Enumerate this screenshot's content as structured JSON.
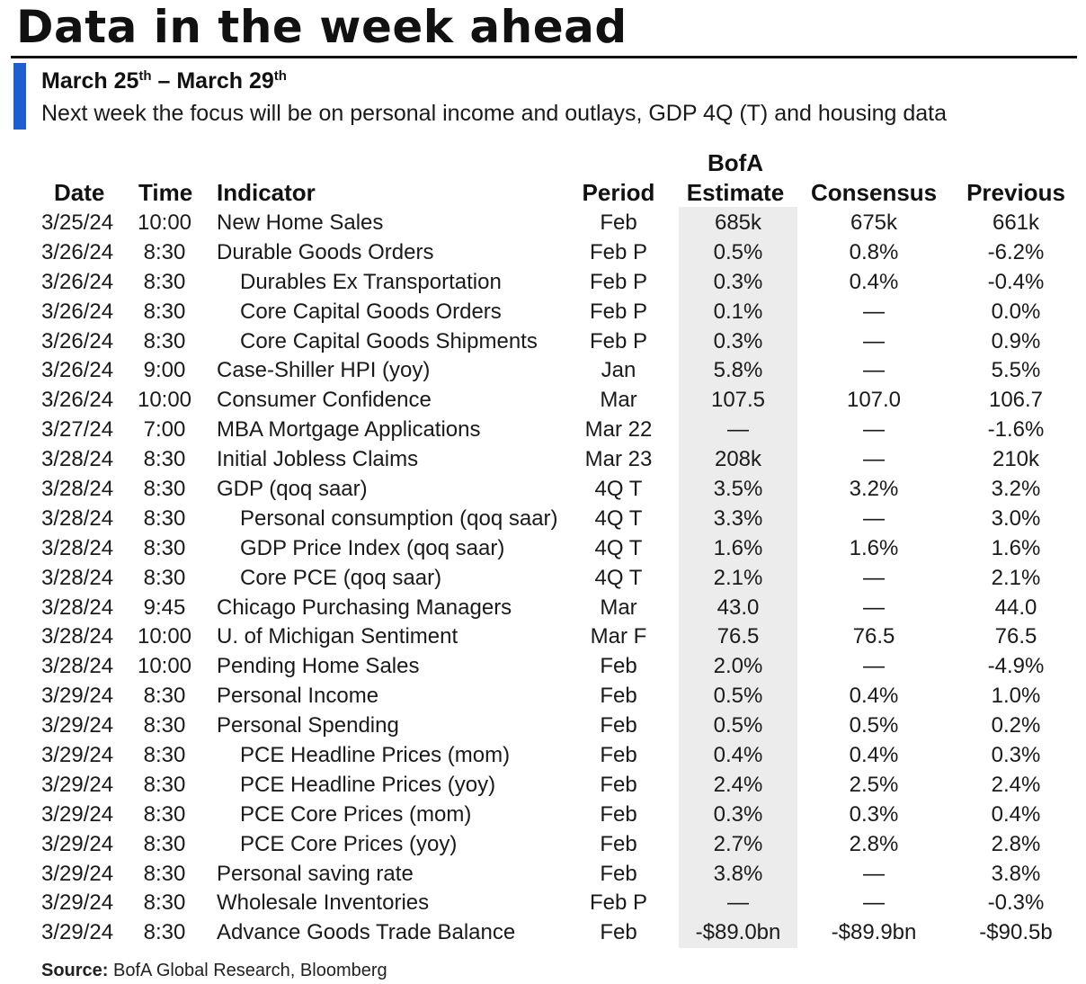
{
  "title": "Data in the week ahead",
  "date_range": {
    "start": "March 25",
    "start_sup": "th",
    "sep": " – ",
    "end": "March 29",
    "end_sup": "th"
  },
  "subtitle": "Next week the focus will be on personal income and outlays, GDP 4Q (T) and housing data",
  "headers": {
    "date": "Date",
    "time": "Time",
    "indicator": "Indicator",
    "period": "Period",
    "estimate_line1": "BofA",
    "estimate_line2": "Estimate",
    "consensus": "Consensus",
    "previous": "Previous"
  },
  "highlight_color": "#ececec",
  "accent_color": "#1d5fd1",
  "rows": [
    {
      "date": "3/25/24",
      "time": "10:00",
      "indicator": "New Home Sales",
      "sub": false,
      "period": "Feb",
      "estimate": "685k",
      "consensus": "675k",
      "previous": "661k"
    },
    {
      "date": "3/26/24",
      "time": "8:30",
      "indicator": "Durable Goods Orders",
      "sub": false,
      "period": "Feb P",
      "estimate": "0.5%",
      "consensus": "0.8%",
      "previous": "-6.2%"
    },
    {
      "date": "3/26/24",
      "time": "8:30",
      "indicator": "Durables Ex Transportation",
      "sub": true,
      "period": "Feb P",
      "estimate": "0.3%",
      "consensus": "0.4%",
      "previous": "-0.4%"
    },
    {
      "date": "3/26/24",
      "time": "8:30",
      "indicator": "Core Capital Goods Orders",
      "sub": true,
      "period": "Feb P",
      "estimate": "0.1%",
      "consensus": "—",
      "previous": "0.0%"
    },
    {
      "date": "3/26/24",
      "time": "8:30",
      "indicator": "Core Capital Goods Shipments",
      "sub": true,
      "period": "Feb P",
      "estimate": "0.3%",
      "consensus": "—",
      "previous": "0.9%"
    },
    {
      "date": "3/26/24",
      "time": "9:00",
      "indicator": "Case-Shiller HPI (yoy)",
      "sub": false,
      "period": "Jan",
      "estimate": "5.8%",
      "consensus": "—",
      "previous": "5.5%"
    },
    {
      "date": "3/26/24",
      "time": "10:00",
      "indicator": "Consumer Confidence",
      "sub": false,
      "period": "Mar",
      "estimate": "107.5",
      "consensus": "107.0",
      "previous": "106.7"
    },
    {
      "date": "3/27/24",
      "time": "7:00",
      "indicator": "MBA Mortgage Applications",
      "sub": false,
      "period": "Mar 22",
      "estimate": "—",
      "consensus": "—",
      "previous": "-1.6%"
    },
    {
      "date": "3/28/24",
      "time": "8:30",
      "indicator": "Initial Jobless Claims",
      "sub": false,
      "period": "Mar 23",
      "estimate": "208k",
      "consensus": "—",
      "previous": "210k"
    },
    {
      "date": "3/28/24",
      "time": "8:30",
      "indicator": "GDP (qoq saar)",
      "sub": false,
      "period": "4Q T",
      "estimate": "3.5%",
      "consensus": "3.2%",
      "previous": "3.2%"
    },
    {
      "date": "3/28/24",
      "time": "8:30",
      "indicator": "Personal consumption (qoq saar)",
      "sub": true,
      "period": "4Q T",
      "estimate": "3.3%",
      "consensus": "—",
      "previous": "3.0%"
    },
    {
      "date": "3/28/24",
      "time": "8:30",
      "indicator": "GDP Price Index (qoq saar)",
      "sub": true,
      "period": "4Q T",
      "estimate": "1.6%",
      "consensus": "1.6%",
      "previous": "1.6%"
    },
    {
      "date": "3/28/24",
      "time": "8:30",
      "indicator": "Core PCE (qoq saar)",
      "sub": true,
      "period": "4Q T",
      "estimate": "2.1%",
      "consensus": "—",
      "previous": "2.1%"
    },
    {
      "date": "3/28/24",
      "time": "9:45",
      "indicator": "Chicago Purchasing Managers",
      "sub": false,
      "period": "Mar",
      "estimate": "43.0",
      "consensus": "—",
      "previous": "44.0"
    },
    {
      "date": "3/28/24",
      "time": "10:00",
      "indicator": "U. of Michigan Sentiment",
      "sub": false,
      "period": "Mar F",
      "estimate": "76.5",
      "consensus": "76.5",
      "previous": "76.5"
    },
    {
      "date": "3/28/24",
      "time": "10:00",
      "indicator": "Pending Home Sales",
      "sub": false,
      "period": "Feb",
      "estimate": "2.0%",
      "consensus": "—",
      "previous": "-4.9%"
    },
    {
      "date": "3/29/24",
      "time": "8:30",
      "indicator": "Personal Income",
      "sub": false,
      "period": "Feb",
      "estimate": "0.5%",
      "consensus": "0.4%",
      "previous": "1.0%"
    },
    {
      "date": "3/29/24",
      "time": "8:30",
      "indicator": "Personal Spending",
      "sub": false,
      "period": "Feb",
      "estimate": "0.5%",
      "consensus": "0.5%",
      "previous": "0.2%"
    },
    {
      "date": "3/29/24",
      "time": "8:30",
      "indicator": "PCE Headline Prices (mom)",
      "sub": true,
      "period": "Feb",
      "estimate": "0.4%",
      "consensus": "0.4%",
      "previous": "0.3%"
    },
    {
      "date": "3/29/24",
      "time": "8:30",
      "indicator": "PCE Headline Prices (yoy)",
      "sub": true,
      "period": "Feb",
      "estimate": "2.4%",
      "consensus": "2.5%",
      "previous": "2.4%"
    },
    {
      "date": "3/29/24",
      "time": "8:30",
      "indicator": "PCE Core Prices (mom)",
      "sub": true,
      "period": "Feb",
      "estimate": "0.3%",
      "consensus": "0.3%",
      "previous": "0.4%"
    },
    {
      "date": "3/29/24",
      "time": "8:30",
      "indicator": "PCE Core Prices (yoy)",
      "sub": true,
      "period": "Feb",
      "estimate": "2.7%",
      "consensus": "2.8%",
      "previous": "2.8%"
    },
    {
      "date": "3/29/24",
      "time": "8:30",
      "indicator": "Personal saving rate",
      "sub": false,
      "period": "Feb",
      "estimate": "3.8%",
      "consensus": "—",
      "previous": "3.8%"
    },
    {
      "date": "3/29/24",
      "time": "8:30",
      "indicator": "Wholesale Inventories",
      "sub": false,
      "period": "Feb P",
      "estimate": "—",
      "consensus": "—",
      "previous": "-0.3%"
    },
    {
      "date": "3/29/24",
      "time": "8:30",
      "indicator": "Advance Goods Trade Balance",
      "sub": false,
      "period": "Feb",
      "estimate": "-$89.0bn",
      "consensus": "-$89.9bn",
      "previous": "-$90.5b"
    }
  ],
  "source": {
    "label": "Source:",
    "text": " BofA Global Research, Bloomberg"
  }
}
